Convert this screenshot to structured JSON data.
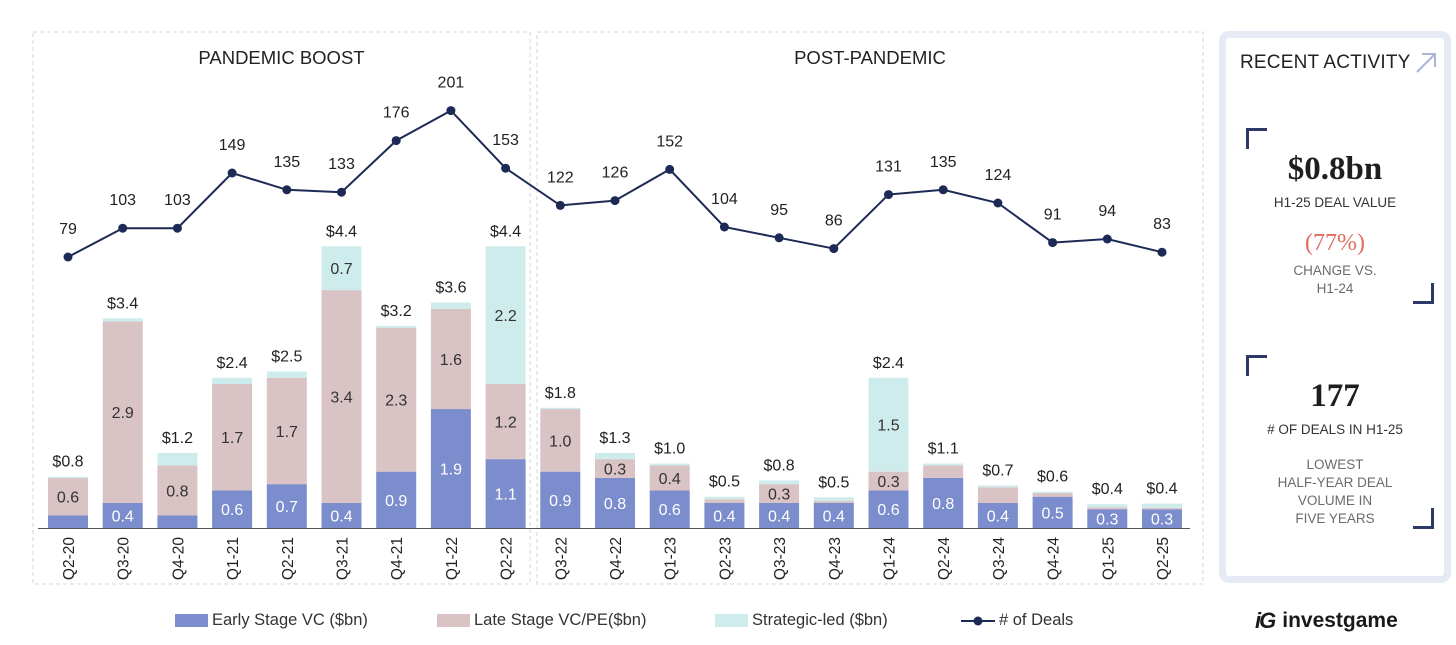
{
  "colors": {
    "early": "#7b8dcc",
    "late": "#d9c3c4",
    "strategic": "#cfecec",
    "deals": "#1c2a55",
    "change_red": "#e06b5f"
  },
  "chart_data": {
    "type": "bar",
    "stacked": true,
    "categories": [
      "Q2-20",
      "Q3-20",
      "Q4-20",
      "Q1-21",
      "Q2-21",
      "Q3-21",
      "Q4-21",
      "Q1-22",
      "Q2-22",
      "Q3-22",
      "Q4-22",
      "Q1-23",
      "Q2-23",
      "Q3-23",
      "Q4-23",
      "Q1-24",
      "Q2-24",
      "Q3-24",
      "Q4-24",
      "Q1-25",
      "Q2-25"
    ],
    "sections": [
      {
        "title": "PANDEMIC BOOST",
        "from": 0,
        "to": 8
      },
      {
        "title": "POST-PANDEMIC",
        "from": 9,
        "to": 20
      }
    ],
    "series": [
      {
        "name": "Early Stage VC ($bn)",
        "type": "bar",
        "values": [
          0.2,
          0.4,
          0.2,
          0.6,
          0.7,
          0.4,
          0.9,
          1.9,
          1.1,
          0.9,
          0.8,
          0.6,
          0.4,
          0.4,
          0.4,
          0.6,
          0.8,
          0.4,
          0.5,
          0.3,
          0.3
        ],
        "labels": [
          "",
          "0.4",
          "",
          "0.6",
          "0.7",
          "0.4",
          "0.9",
          "1.9",
          "1.1",
          "0.9",
          "0.8",
          "0.6",
          "0.4",
          "0.4",
          "0.4",
          "0.6",
          "0.8",
          "0.4",
          "0.5",
          "0.3",
          "0.3"
        ]
      },
      {
        "name": "Late Stage VC/PE($bn)",
        "type": "bar",
        "values": [
          0.6,
          2.9,
          0.8,
          1.7,
          1.7,
          3.4,
          2.3,
          1.6,
          1.2,
          1.0,
          0.3,
          0.4,
          0.06,
          0.3,
          0.03,
          0.3,
          0.2,
          0.25,
          0.06,
          0.03,
          0.02
        ],
        "labels": [
          "0.6",
          "2.9",
          "0.8",
          "1.7",
          "1.7",
          "3.4",
          "2.3",
          "1.6",
          "1.2",
          "1.0",
          "0.3",
          "0.4",
          "",
          "0.3",
          "",
          "0.3",
          "",
          "",
          "",
          "",
          ""
        ]
      },
      {
        "name": "Strategic-led ($bn)",
        "type": "bar",
        "values": [
          0.02,
          0.05,
          0.2,
          0.1,
          0.1,
          0.7,
          0.03,
          0.1,
          2.2,
          0.02,
          0.1,
          0.03,
          0.04,
          0.06,
          0.06,
          1.5,
          0.03,
          0.03,
          0.02,
          0.05,
          0.07
        ],
        "labels": [
          "",
          "",
          "",
          "",
          "",
          "0.7",
          "",
          "",
          "2.2",
          "",
          "",
          "",
          "",
          "",
          "",
          "1.5",
          "",
          "",
          "",
          "",
          ""
        ]
      },
      {
        "name": "# of Deals",
        "type": "line",
        "values": [
          79,
          103,
          103,
          149,
          135,
          133,
          176,
          201,
          153,
          122,
          126,
          152,
          104,
          95,
          86,
          131,
          135,
          124,
          91,
          94,
          83
        ]
      }
    ],
    "totals": [
      "$0.8",
      "$3.4",
      "$1.2",
      "$2.4",
      "$2.5",
      "$4.4",
      "$3.2",
      "$3.6",
      "$4.4",
      "$1.8",
      "$1.3",
      "$1.0",
      "$0.5",
      "$0.8",
      "$0.5",
      "$2.4",
      "$1.1",
      "$0.7",
      "$0.6",
      "$0.4",
      "$0.4"
    ],
    "legend": [
      "Early Stage VC ($bn)",
      "Late Stage VC/PE($bn)",
      "Strategic-led ($bn)",
      "# of Deals"
    ],
    "legend_position": "bottom"
  },
  "side_panel": {
    "title": "RECENT ACTIVITY",
    "deal_value": "$0.8bn",
    "deal_value_label": "H1-25 DEAL VALUE",
    "change": "(77%)",
    "change_label_1": "CHANGE VS.",
    "change_label_2": "H1-24",
    "deal_count": "177",
    "deal_count_label": "# OF DEALS IN H1-25",
    "note_1": "LOWEST",
    "note_2": "HALF-YEAR DEAL",
    "note_3": "VOLUME IN",
    "note_4": "FIVE YEARS"
  },
  "logo": {
    "mark": "iG",
    "text": "investgame"
  }
}
